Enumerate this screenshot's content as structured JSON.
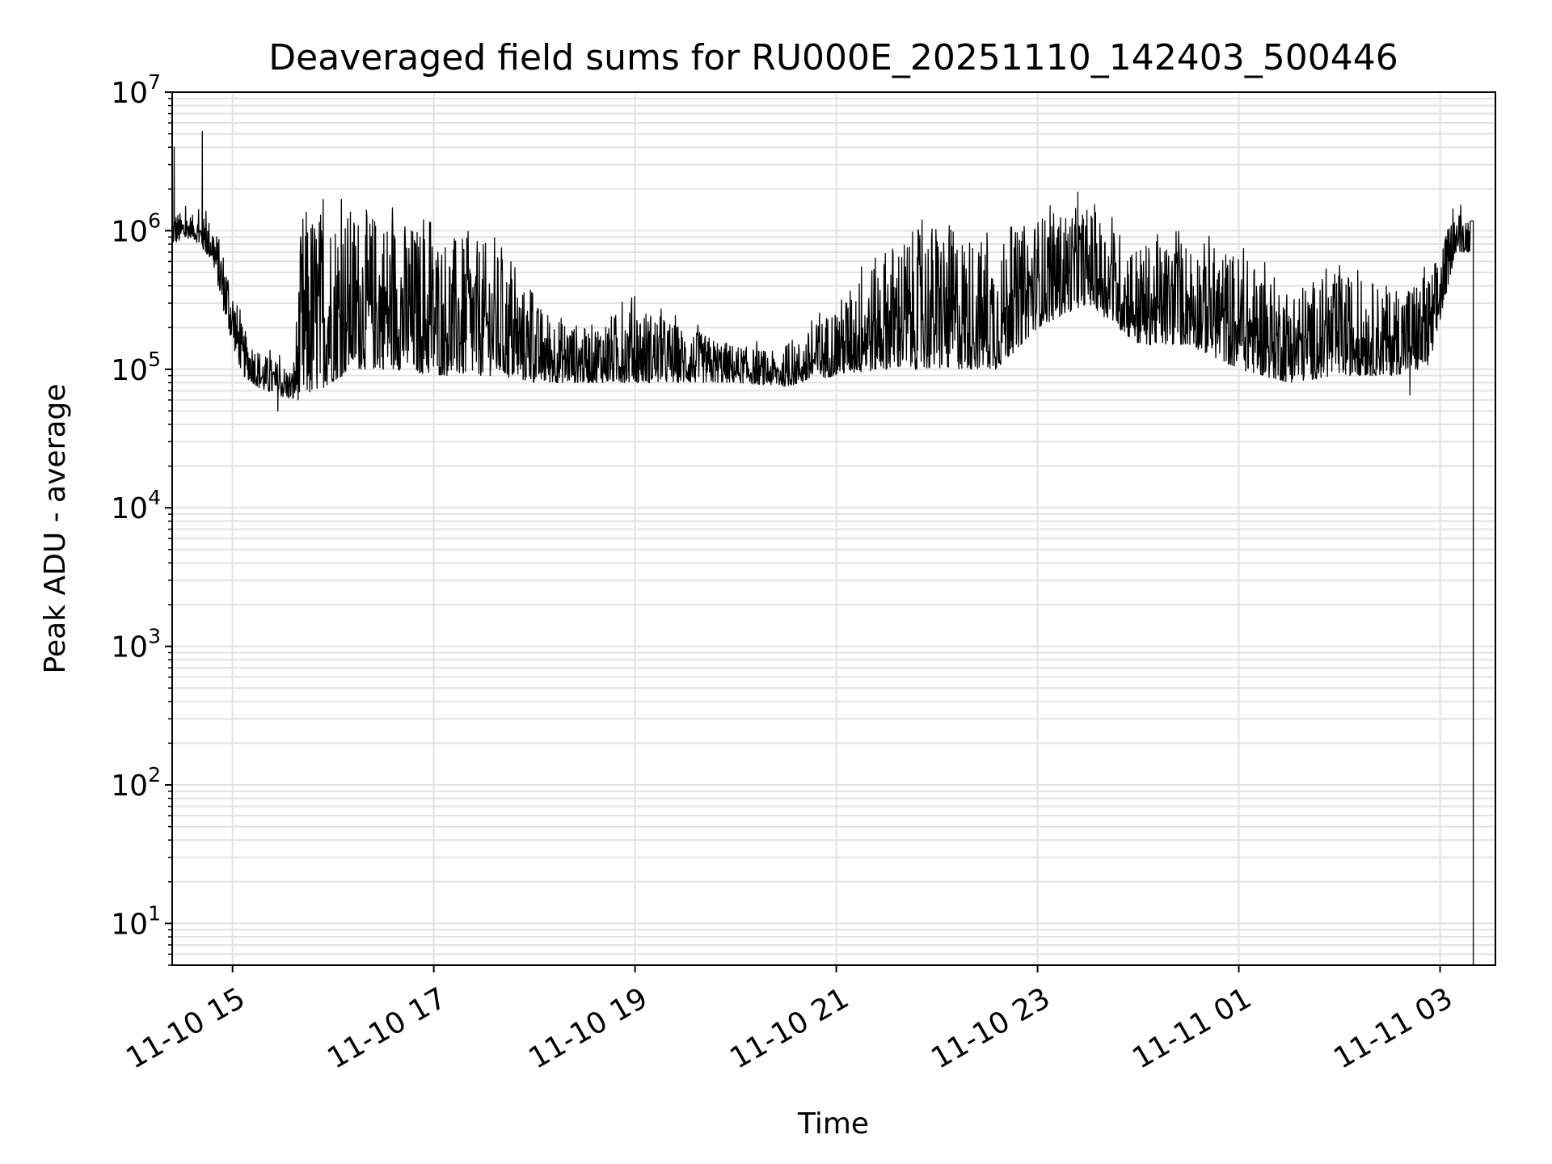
{
  "chart_data": {
    "type": "line",
    "title": "Deaveraged field sums for RU000E_20251110_142403_500446",
    "xlabel": "Time",
    "ylabel": "Peak ADU - average",
    "yscale": "log",
    "ylim": [
      5,
      10000000
    ],
    "xlim_hours_from_2025_11_10_00": [
      14.4,
      27.55
    ],
    "grid": true,
    "line_color": "#000000",
    "grid_color": "#e2e2e2",
    "y_ticks": [
      {
        "value": 10,
        "base": "10",
        "exp": "1"
      },
      {
        "value": 100,
        "base": "10",
        "exp": "2"
      },
      {
        "value": 1000,
        "base": "10",
        "exp": "3"
      },
      {
        "value": 10000,
        "base": "10",
        "exp": "4"
      },
      {
        "value": 100000,
        "base": "10",
        "exp": "5"
      },
      {
        "value": 1000000,
        "base": "10",
        "exp": "6"
      },
      {
        "value": 10000000,
        "base": "10",
        "exp": "7"
      }
    ],
    "x_ticks": [
      {
        "hour": 15,
        "label": "11-10 15"
      },
      {
        "hour": 17,
        "label": "11-10 17"
      },
      {
        "hour": 19,
        "label": "11-10 19"
      },
      {
        "hour": 21,
        "label": "11-10 21"
      },
      {
        "hour": 23,
        "label": "11-10 23"
      },
      {
        "hour": 25,
        "label": "11-11 01"
      },
      {
        "hour": 27,
        "label": "11-11 03"
      }
    ],
    "series": [
      {
        "name": "Peak ADU - average",
        "envelope_note": "Approximate noisy trace: per-segment [hour, typical low, typical high] plus isolated spikes",
        "envelope": [
          [
            14.4,
            800000,
            1400000
          ],
          [
            14.6,
            900000,
            1300000
          ],
          [
            14.8,
            600000,
            1200000
          ],
          [
            14.95,
            200000,
            600000
          ],
          [
            15.1,
            90000,
            200000
          ],
          [
            15.3,
            70000,
            130000
          ],
          [
            15.6,
            60000,
            100000
          ],
          [
            15.7,
            60000,
            1500000
          ],
          [
            16.2,
            100000,
            1500000
          ],
          [
            16.6,
            100000,
            1300000
          ],
          [
            17.0,
            90000,
            1000000
          ],
          [
            17.6,
            90000,
            800000
          ],
          [
            18.0,
            80000,
            300000
          ],
          [
            18.5,
            80000,
            200000
          ],
          [
            19.0,
            80000,
            300000
          ],
          [
            19.5,
            80000,
            200000
          ],
          [
            20.0,
            80000,
            150000
          ],
          [
            20.5,
            75000,
            130000
          ],
          [
            21.0,
            90000,
            300000
          ],
          [
            21.5,
            100000,
            800000
          ],
          [
            22.0,
            100000,
            1200000
          ],
          [
            22.6,
            100000,
            800000
          ],
          [
            23.0,
            200000,
            1300000
          ],
          [
            23.5,
            300000,
            1500000
          ],
          [
            24.0,
            150000,
            800000
          ],
          [
            24.5,
            150000,
            900000
          ],
          [
            25.0,
            100000,
            700000
          ],
          [
            25.5,
            80000,
            400000
          ],
          [
            26.0,
            90000,
            500000
          ],
          [
            26.5,
            90000,
            400000
          ],
          [
            26.9,
            100000,
            500000
          ],
          [
            27.15,
            700000,
            1400000
          ],
          [
            27.3,
            700000,
            1300000
          ]
        ],
        "spikes": [
          [
            14.42,
            4000000
          ],
          [
            14.7,
            5200000
          ],
          [
            15.45,
            50000
          ],
          [
            23.4,
            1900000
          ],
          [
            26.7,
            65000
          ]
        ],
        "final_drop": [
          27.33,
          5
        ]
      }
    ]
  }
}
